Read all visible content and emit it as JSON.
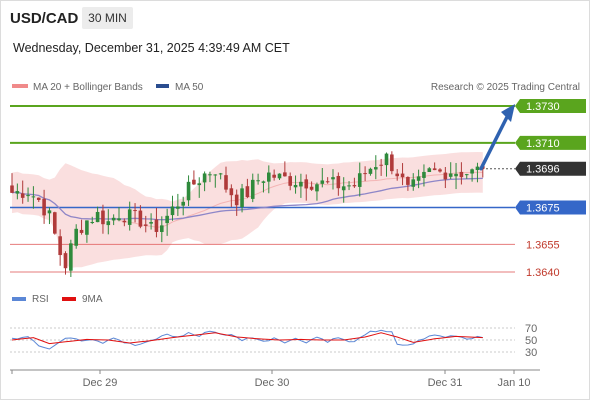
{
  "header": {
    "symbol": "USD/CAD",
    "timeframe": "30 MIN",
    "timestamp": "Wednesday, December 31, 2025 4:39:49 AM CET"
  },
  "legend": {
    "ma20": "MA 20 + Bollinger Bands",
    "ma50": "MA 50",
    "credit": "Research © 2025 Trading Central",
    "rsi": "RSI",
    "rsi_ma": "9MA"
  },
  "colors": {
    "green": "#5aa51e",
    "blue": "#3567c8",
    "red": "#e05a5a",
    "current": "#333333",
    "candle_up": "#2f8a3c",
    "candle_down": "#b03a3a",
    "band": "#f9d9d9",
    "ma50": "#8e86c8",
    "arrow": "#2f62b0"
  },
  "chart_data": {
    "type": "candlestick",
    "levels": [
      {
        "value": 1.373,
        "label": "1.3730",
        "kind": "resistance"
      },
      {
        "value": 1.371,
        "label": "1.3710",
        "kind": "resistance"
      },
      {
        "value": 1.3696,
        "label": "1.3696",
        "kind": "current"
      },
      {
        "value": 1.3675,
        "label": "1.3675",
        "kind": "pivot"
      },
      {
        "value": 1.3655,
        "label": "1.3655",
        "kind": "support"
      },
      {
        "value": 1.364,
        "label": "1.3640",
        "kind": "support"
      }
    ],
    "ylim": [
      1.3633,
      1.3739
    ],
    "x_ticks": [
      "Dec 29",
      "Dec 30",
      "Dec 31",
      "Jan 10"
    ],
    "price_path": [
      [
        0,
        1.3683
      ],
      [
        3,
        1.3684
      ],
      [
        5,
        1.3679
      ],
      [
        7,
        1.367
      ],
      [
        9,
        1.365
      ],
      [
        10,
        1.3644
      ],
      [
        12,
        1.3662
      ],
      [
        14,
        1.3668
      ],
      [
        16,
        1.3671
      ],
      [
        18,
        1.3667
      ],
      [
        20,
        1.3672
      ],
      [
        22,
        1.367
      ],
      [
        24,
        1.3668
      ],
      [
        26,
        1.3663
      ],
      [
        28,
        1.3666
      ],
      [
        30,
        1.3674
      ],
      [
        32,
        1.3681
      ],
      [
        34,
        1.3688
      ],
      [
        36,
        1.3693
      ],
      [
        38,
        1.3696
      ],
      [
        40,
        1.3686
      ],
      [
        42,
        1.368
      ],
      [
        44,
        1.3683
      ],
      [
        46,
        1.369
      ],
      [
        48,
        1.3693
      ],
      [
        50,
        1.3691
      ],
      [
        52,
        1.369
      ],
      [
        55,
        1.3689
      ],
      [
        58,
        1.3688
      ],
      [
        61,
        1.3687
      ],
      [
        64,
        1.3687
      ],
      [
        66,
        1.3694
      ],
      [
        68,
        1.3699
      ],
      [
        70,
        1.3702
      ],
      [
        72,
        1.3694
      ],
      [
        74,
        1.3684
      ],
      [
        76,
        1.3688
      ],
      [
        78,
        1.3694
      ],
      [
        80,
        1.3694
      ],
      [
        82,
        1.3695
      ],
      [
        84,
        1.3694
      ],
      [
        86,
        1.3694
      ],
      [
        88,
        1.3696
      ]
    ],
    "projection": {
      "from": 1.3696,
      "to": 1.373
    },
    "rsi": {
      "levels": [
        70,
        50,
        30
      ],
      "rsi_path": [
        [
          0,
          52
        ],
        [
          3,
          57
        ],
        [
          5,
          42
        ],
        [
          7,
          35
        ],
        [
          9,
          47
        ],
        [
          11,
          55
        ],
        [
          13,
          50
        ],
        [
          15,
          52
        ],
        [
          17,
          46
        ],
        [
          19,
          55
        ],
        [
          21,
          46
        ],
        [
          23,
          41
        ],
        [
          25,
          45
        ],
        [
          27,
          52
        ],
        [
          29,
          60
        ],
        [
          31,
          54
        ],
        [
          33,
          62
        ],
        [
          35,
          56
        ],
        [
          37,
          66
        ],
        [
          39,
          60
        ],
        [
          41,
          58
        ],
        [
          43,
          50
        ],
        [
          45,
          55
        ],
        [
          47,
          47
        ],
        [
          49,
          54
        ],
        [
          51,
          47
        ],
        [
          53,
          52
        ],
        [
          55,
          47
        ],
        [
          57,
          55
        ],
        [
          59,
          48
        ],
        [
          61,
          54
        ],
        [
          63,
          46
        ],
        [
          65,
          52
        ],
        [
          67,
          63
        ],
        [
          69,
          67
        ],
        [
          71,
          62
        ],
        [
          72,
          42
        ],
        [
          73,
          40
        ],
        [
          75,
          44
        ],
        [
          77,
          53
        ],
        [
          79,
          58
        ],
        [
          81,
          55
        ],
        [
          83,
          58
        ],
        [
          85,
          52
        ],
        [
          87,
          56
        ],
        [
          88,
          55
        ]
      ],
      "ma_path": [
        [
          0,
          50
        ],
        [
          4,
          54
        ],
        [
          7,
          44
        ],
        [
          10,
          47
        ],
        [
          14,
          51
        ],
        [
          18,
          50
        ],
        [
          22,
          45
        ],
        [
          26,
          49
        ],
        [
          30,
          54
        ],
        [
          34,
          58
        ],
        [
          38,
          62
        ],
        [
          42,
          55
        ],
        [
          46,
          52
        ],
        [
          50,
          50
        ],
        [
          54,
          51
        ],
        [
          58,
          50
        ],
        [
          62,
          50
        ],
        [
          66,
          55
        ],
        [
          69,
          62
        ],
        [
          72,
          55
        ],
        [
          75,
          46
        ],
        [
          79,
          52
        ],
        [
          83,
          56
        ],
        [
          88,
          54
        ]
      ]
    }
  }
}
